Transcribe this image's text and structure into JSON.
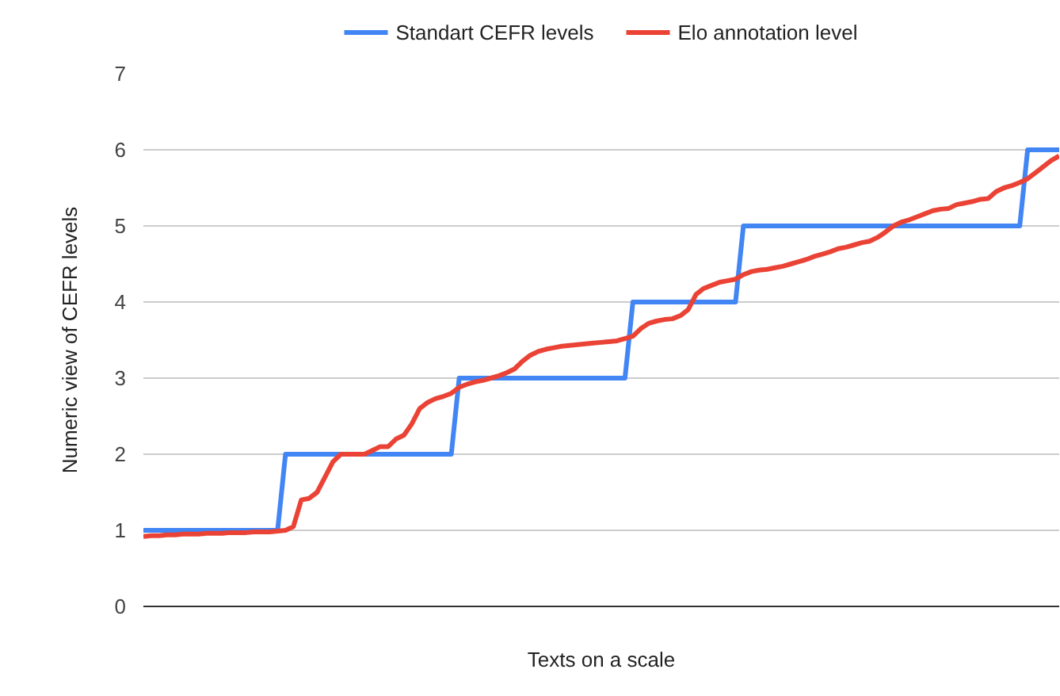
{
  "chart_data": {
    "type": "line",
    "xlabel": "Texts on a scale",
    "ylabel": "Numeric view of CEFR levels",
    "categories": [
      null,
      null,
      null,
      null,
      null,
      null,
      null,
      null,
      null,
      null,
      null,
      null,
      null,
      null,
      null,
      null,
      null,
      null,
      null,
      null,
      null,
      null,
      null,
      null,
      null,
      null,
      null,
      null,
      null,
      null,
      null,
      null,
      null,
      null,
      null,
      null,
      null,
      null,
      null,
      null,
      null,
      null,
      null,
      null,
      null,
      null,
      null,
      null,
      null,
      null,
      null,
      null,
      null,
      null,
      null,
      null,
      null,
      null,
      null,
      null,
      null,
      null,
      null,
      null,
      null,
      null,
      null,
      null,
      null,
      null,
      null,
      null,
      null,
      null,
      null,
      null,
      null,
      null,
      null,
      null,
      null,
      null,
      null,
      null,
      null,
      null,
      null,
      null,
      null,
      null,
      null,
      null,
      null,
      null,
      null,
      null,
      null,
      null,
      null,
      null,
      null,
      null,
      null,
      null,
      null,
      null,
      null,
      null,
      null,
      null,
      null,
      null,
      null,
      null,
      null,
      null,
      null
    ],
    "series": [
      {
        "name": "Standart CEFR levels",
        "color": "#4285f4",
        "values": [
          1,
          1,
          1,
          1,
          1,
          1,
          1,
          1,
          1,
          1,
          1,
          1,
          1,
          1,
          1,
          1,
          1,
          1,
          2,
          2,
          2,
          2,
          2,
          2,
          2,
          2,
          2,
          2,
          2,
          2,
          2,
          2,
          2,
          2,
          2,
          2,
          2,
          2,
          2,
          2,
          3,
          3,
          3,
          3,
          3,
          3,
          3,
          3,
          3,
          3,
          3,
          3,
          3,
          3,
          3,
          3,
          3,
          3,
          3,
          3,
          3,
          3,
          4,
          4,
          4,
          4,
          4,
          4,
          4,
          4,
          4,
          4,
          4,
          4,
          4,
          4,
          5,
          5,
          5,
          5,
          5,
          5,
          5,
          5,
          5,
          5,
          5,
          5,
          5,
          5,
          5,
          5,
          5,
          5,
          5,
          5,
          5,
          5,
          5,
          5,
          5,
          5,
          5,
          5,
          5,
          5,
          5,
          5,
          5,
          5,
          5,
          5,
          6,
          6,
          6,
          6,
          6
        ]
      },
      {
        "name": "Elo annotation level",
        "color": "#ea4335",
        "values": [
          0.92,
          0.93,
          0.93,
          0.94,
          0.94,
          0.95,
          0.95,
          0.95,
          0.96,
          0.96,
          0.96,
          0.97,
          0.97,
          0.97,
          0.98,
          0.98,
          0.98,
          0.99,
          1.0,
          1.05,
          1.4,
          1.42,
          1.5,
          1.7,
          1.9,
          2.0,
          2.0,
          2.0,
          2.0,
          2.05,
          2.1,
          2.1,
          2.2,
          2.25,
          2.4,
          2.6,
          2.68,
          2.73,
          2.76,
          2.8,
          2.88,
          2.92,
          2.95,
          2.97,
          3.0,
          3.03,
          3.07,
          3.12,
          3.22,
          3.3,
          3.35,
          3.38,
          3.4,
          3.42,
          3.43,
          3.44,
          3.45,
          3.46,
          3.47,
          3.48,
          3.49,
          3.52,
          3.55,
          3.65,
          3.72,
          3.75,
          3.77,
          3.78,
          3.82,
          3.9,
          4.1,
          4.18,
          4.22,
          4.26,
          4.28,
          4.3,
          4.36,
          4.4,
          4.42,
          4.43,
          4.45,
          4.47,
          4.5,
          4.53,
          4.56,
          4.6,
          4.63,
          4.66,
          4.7,
          4.72,
          4.75,
          4.78,
          4.8,
          4.85,
          4.92,
          5.0,
          5.05,
          5.08,
          5.12,
          5.16,
          5.2,
          5.22,
          5.23,
          5.28,
          5.3,
          5.32,
          5.35,
          5.36,
          5.45,
          5.5,
          5.53,
          5.57,
          5.62,
          5.7,
          5.78,
          5.86,
          5.92
        ]
      }
    ],
    "ylim": [
      0,
      7
    ],
    "yticks": [
      0,
      1,
      2,
      3,
      4,
      5,
      6,
      7
    ],
    "grid": "y",
    "legend": "top",
    "marker": "none",
    "line_style": "solid"
  }
}
